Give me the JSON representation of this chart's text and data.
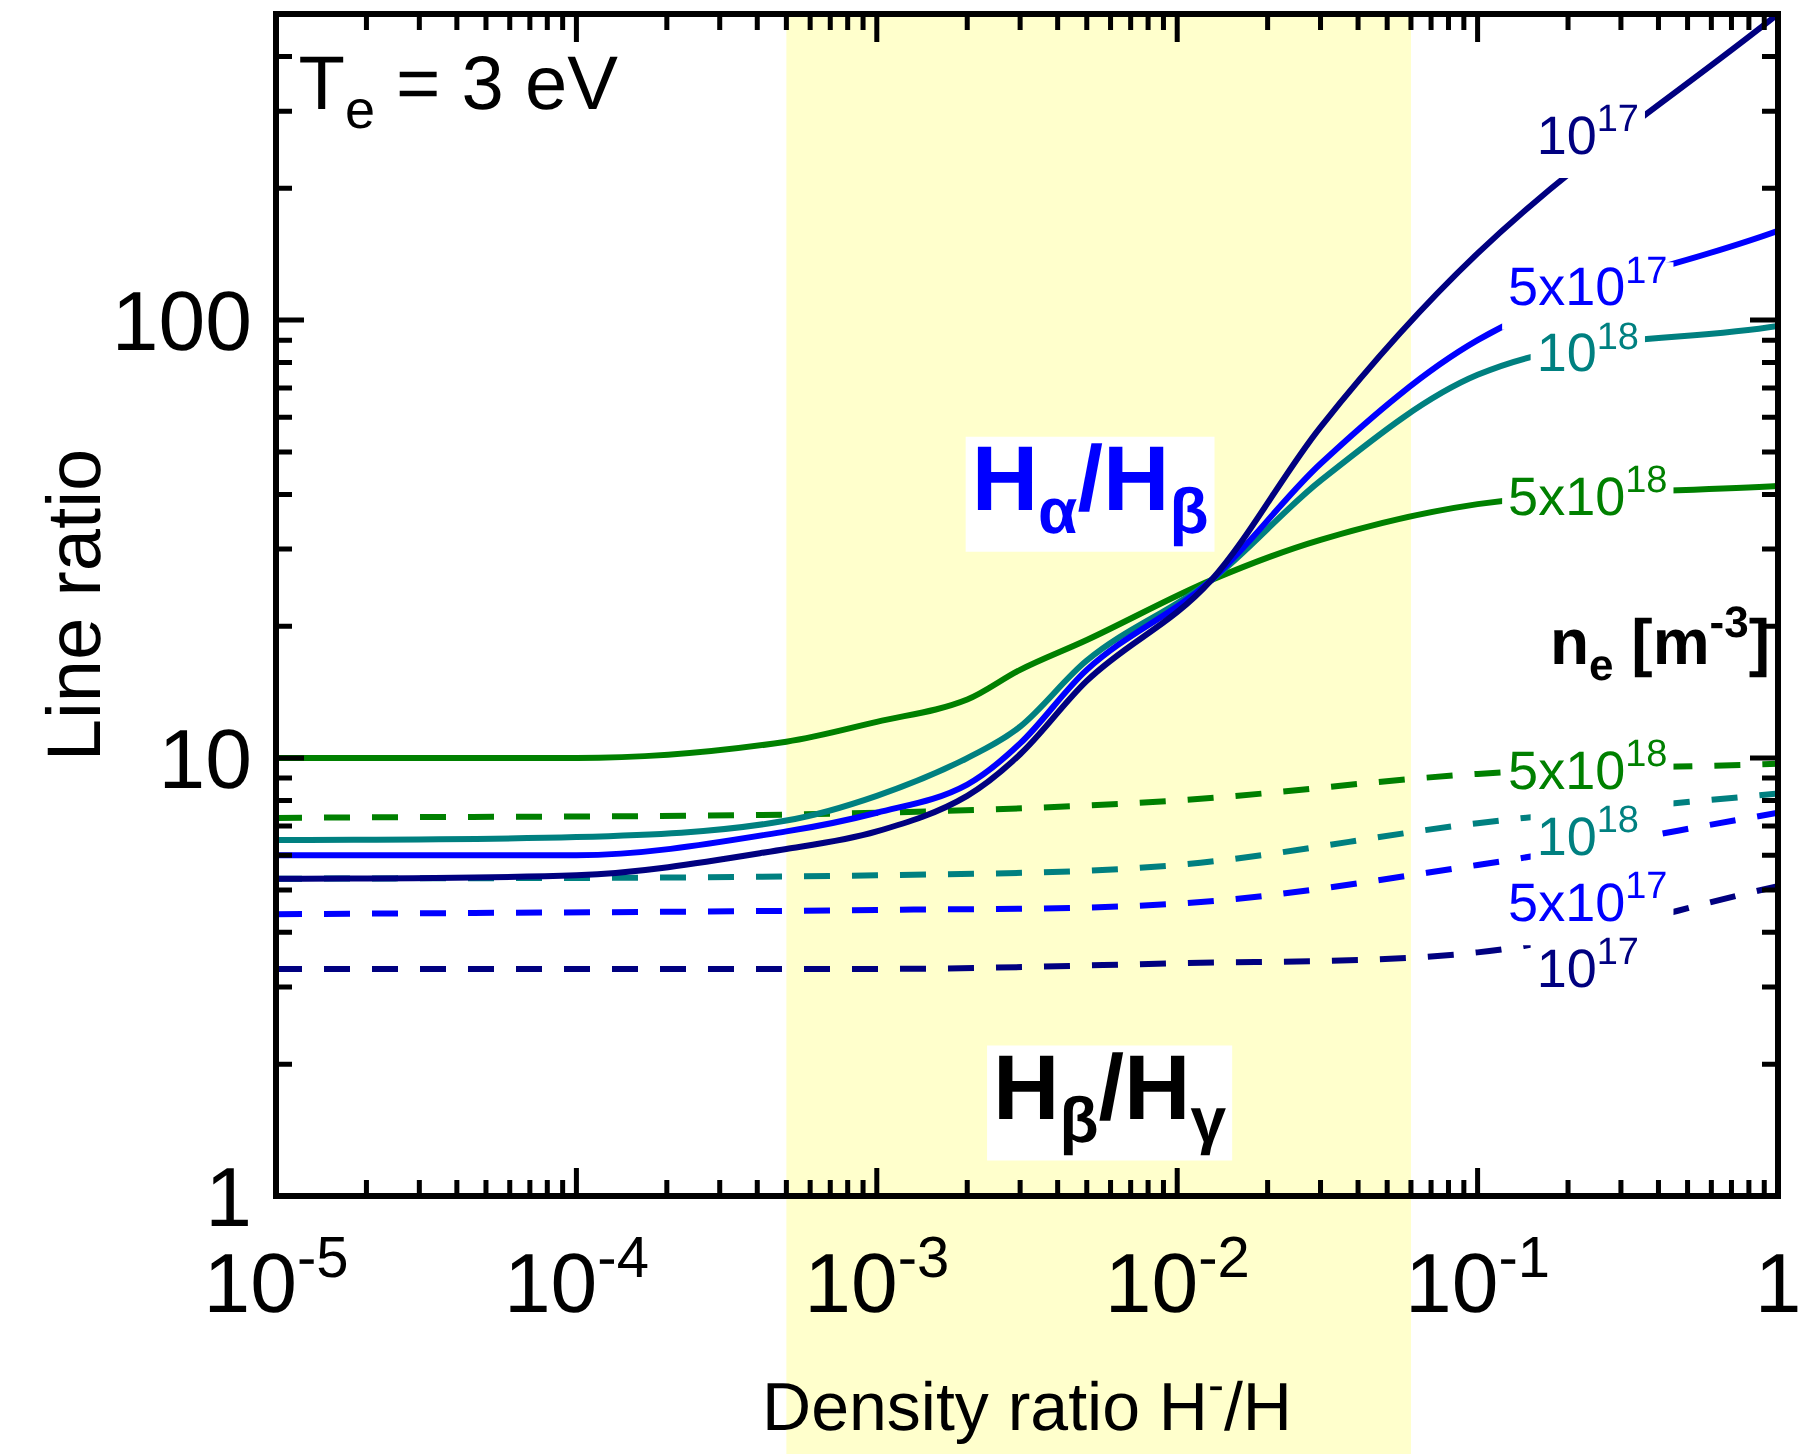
{
  "chart_data": {
    "type": "line",
    "xlabel": "Density ratio H$^{-}$/H",
    "ylabel": "Line ratio",
    "legend_title": "n$_{e}$ [m$^{-3}$]",
    "log": "xy",
    "legend": false,
    "marker": "none",
    "annotations": [
      "T$_{e}$ = 3 eV",
      "H$_{α}$/H$_{β}$",
      "H$_{β}$/H$_{γ}$"
    ],
    "xlim": [
      1e-05,
      1
    ],
    "ylim": [
      1,
      500
    ],
    "xticks": [
      {
        "value": 1e-05,
        "label": "10$^{-5}$"
      },
      {
        "value": 2e-05,
        "label": null
      },
      {
        "value": 3e-05,
        "label": null
      },
      {
        "value": 4e-05,
        "label": null
      },
      {
        "value": 5e-05,
        "label": null
      },
      {
        "value": 6e-05,
        "label": null
      },
      {
        "value": 7e-05,
        "label": null
      },
      {
        "value": 8e-05,
        "label": null
      },
      {
        "value": 9e-05,
        "label": null
      },
      {
        "value": 0.0001,
        "label": "10$^{-4}$"
      },
      {
        "value": 0.0002,
        "label": null
      },
      {
        "value": 0.0003,
        "label": null
      },
      {
        "value": 0.0004,
        "label": null
      },
      {
        "value": 0.0005,
        "label": null
      },
      {
        "value": 0.0006,
        "label": null
      },
      {
        "value": 0.0007,
        "label": null
      },
      {
        "value": 0.0008,
        "label": null
      },
      {
        "value": 0.0009,
        "label": null
      },
      {
        "value": 0.001,
        "label": "10$^{-3}$"
      },
      {
        "value": 0.002,
        "label": null
      },
      {
        "value": 0.003,
        "label": null
      },
      {
        "value": 0.004,
        "label": null
      },
      {
        "value": 0.005,
        "label": null
      },
      {
        "value": 0.006,
        "label": null
      },
      {
        "value": 0.007,
        "label": null
      },
      {
        "value": 0.008,
        "label": null
      },
      {
        "value": 0.009,
        "label": null
      },
      {
        "value": 0.01,
        "label": "10$^{-2}$"
      },
      {
        "value": 0.02,
        "label": null
      },
      {
        "value": 0.03,
        "label": null
      },
      {
        "value": 0.04,
        "label": null
      },
      {
        "value": 0.05,
        "label": null
      },
      {
        "value": 0.06,
        "label": null
      },
      {
        "value": 0.07,
        "label": null
      },
      {
        "value": 0.08,
        "label": null
      },
      {
        "value": 0.09,
        "label": null
      },
      {
        "value": 0.1,
        "label": "10$^{-1}$"
      },
      {
        "value": 0.2,
        "label": null
      },
      {
        "value": 0.3,
        "label": null
      },
      {
        "value": 0.4,
        "label": null
      },
      {
        "value": 0.5,
        "label": null
      },
      {
        "value": 0.6,
        "label": null
      },
      {
        "value": 0.7,
        "label": null
      },
      {
        "value": 0.8,
        "label": null
      },
      {
        "value": 0.9,
        "label": null
      },
      1
    ],
    "yticks": [
      1,
      {
        "value": 2,
        "label": null
      },
      {
        "value": 3,
        "label": null
      },
      {
        "value": 4,
        "label": null
      },
      {
        "value": 5,
        "label": null
      },
      {
        "value": 6,
        "label": null
      },
      {
        "value": 7,
        "label": null
      },
      {
        "value": 8,
        "label": null
      },
      {
        "value": 9,
        "label": null
      },
      10,
      {
        "value": 20,
        "label": null
      },
      {
        "value": 30,
        "label": null
      },
      {
        "value": 40,
        "label": null
      },
      {
        "value": 50,
        "label": null
      },
      {
        "value": 60,
        "label": null
      },
      {
        "value": 70,
        "label": null
      },
      {
        "value": 80,
        "label": null
      },
      {
        "value": 90,
        "label": null
      },
      100,
      {
        "value": 200,
        "label": null
      },
      {
        "value": 300,
        "label": null
      },
      {
        "value": 400,
        "label": null
      }
    ],
    "bands": [
      {
        "axis": "x",
        "from": 0.0005,
        "to": 0.06,
        "color": "#ffffcc"
      }
    ],
    "series": [
      {
        "name": "10$^{17}$",
        "color": "#000080",
        "line_style": "solid",
        "x": [
          1e-05,
          0.0001,
          0.0005,
          0.001,
          0.002,
          0.003,
          0.005,
          0.013,
          0.03,
          0.1,
          1
        ],
        "values": [
          5.3,
          5.4,
          6.2,
          6.8,
          8.2,
          10.2,
          15,
          25.5,
          57,
          142,
          500
        ]
      },
      {
        "name": "5x10$^{17}$",
        "color": "#0000ff",
        "line_style": "solid",
        "x": [
          1e-05,
          0.0001,
          0.0005,
          0.001,
          0.002,
          0.003,
          0.005,
          0.013,
          0.03,
          0.1,
          1
        ],
        "values": [
          6.0,
          6.0,
          6.8,
          7.5,
          8.7,
          10.8,
          15.9,
          25.5,
          47,
          90,
          160
        ]
      },
      {
        "name": "10$^{18}$",
        "color": "#008080",
        "line_style": "solid",
        "x": [
          1e-05,
          0.0001,
          0.0005,
          0.001,
          0.002,
          0.003,
          0.005,
          0.013,
          0.03,
          0.1,
          1
        ],
        "values": [
          6.5,
          6.6,
          7.2,
          8.2,
          10,
          11.8,
          16.7,
          25.5,
          43,
          75,
          97
        ]
      },
      {
        "name": "5x10$^{18}$",
        "color": "#008000",
        "line_style": "solid",
        "x": [
          1e-05,
          0.0001,
          0.0005,
          0.001,
          0.002,
          0.003,
          0.005,
          0.013,
          0.03,
          0.1,
          1
        ],
        "values": [
          10,
          10,
          10.9,
          12.1,
          13.6,
          15.9,
          18.6,
          25.5,
          31.5,
          38,
          41.8
        ]
      },
      {
        "name": "5x10$^{18}$",
        "color": "#008000",
        "line_style": "dashed",
        "x": [
          1e-05,
          0.001,
          0.01,
          0.1,
          1
        ],
        "values": [
          7.3,
          7.5,
          8.0,
          9.2,
          9.7
        ]
      },
      {
        "name": "10$^{18}$",
        "color": "#008080",
        "line_style": "dashed",
        "x": [
          1e-05,
          0.001,
          0.01,
          0.1,
          1
        ],
        "values": [
          5.3,
          5.4,
          5.7,
          7.1,
          8.3
        ]
      },
      {
        "name": "5x10$^{17}$",
        "color": "#0000ff",
        "line_style": "dashed",
        "x": [
          1e-05,
          0.001,
          0.01,
          0.1,
          1
        ],
        "values": [
          4.4,
          4.5,
          4.65,
          5.7,
          7.5
        ]
      },
      {
        "name": "10$^{17}$",
        "color": "#000080",
        "line_style": "dashed",
        "x": [
          1e-05,
          0.001,
          0.01,
          0.1,
          1
        ],
        "values": [
          3.3,
          3.3,
          3.4,
          3.6,
          5.1
        ]
      }
    ]
  }
}
